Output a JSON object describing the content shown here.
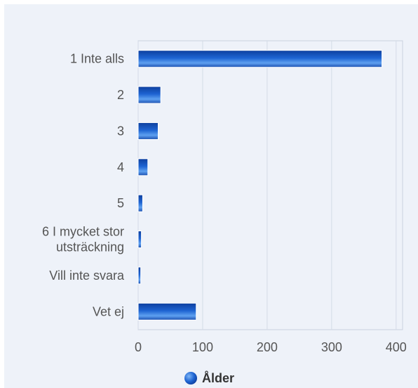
{
  "chart_data": {
    "type": "bar",
    "orientation": "horizontal",
    "categories": [
      "1 Inte alls",
      "2",
      "3",
      "4",
      "5",
      "6 I mycket stor utsträckning",
      "Vill inte svara",
      "Vet ej"
    ],
    "category_label_lines": [
      [
        "1 Inte alls"
      ],
      [
        "2"
      ],
      [
        "3"
      ],
      [
        "4"
      ],
      [
        "5"
      ],
      [
        "6 I mycket stor",
        "utsträckning"
      ],
      [
        "Vill inte svara"
      ],
      [
        "Vet ej"
      ]
    ],
    "series": [
      {
        "name": "Ålder",
        "values": [
          378,
          35,
          31,
          15,
          7,
          5,
          4,
          90
        ]
      }
    ],
    "xticks": [
      0,
      100,
      200,
      300,
      400
    ],
    "xlim": [
      0,
      410
    ],
    "title": "",
    "xlabel": "",
    "ylabel": "",
    "grid": "vertical",
    "legend_position": "bottom-center",
    "colors": {
      "bar_dark": "#0d3f9e",
      "bar_mid": "#1e64d2",
      "bar_light": "#5ea0f0",
      "plot_background": "#eef2f9",
      "grid": "#d4dbe6",
      "text": "#555555"
    }
  }
}
